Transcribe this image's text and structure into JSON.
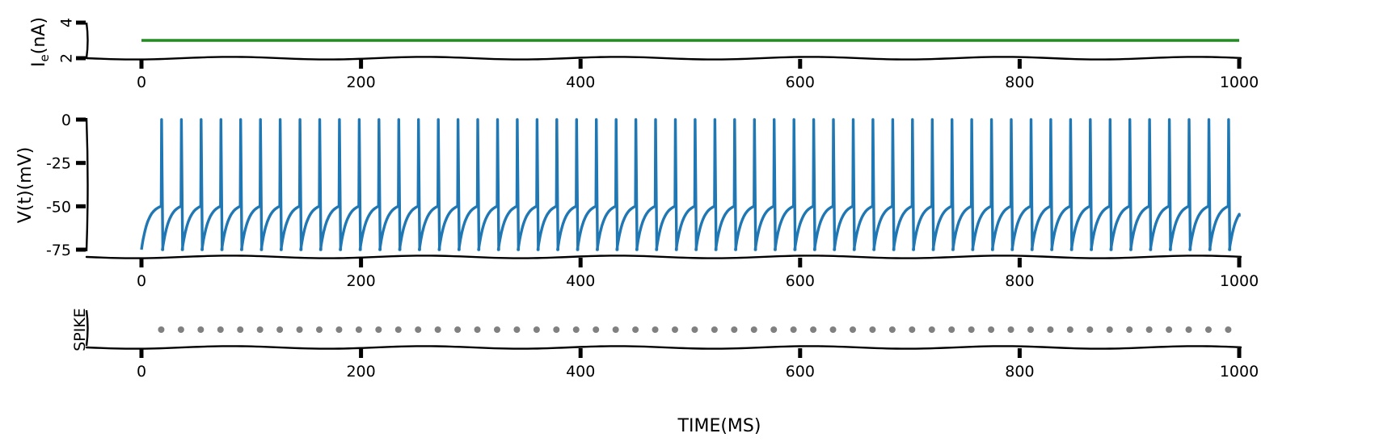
{
  "chart_data": [
    {
      "type": "line",
      "panel": "current",
      "ylabel": "I_e(nA)",
      "ylabel_main": "I",
      "ylabel_sub": "e",
      "ylabel_tail": "(nA)",
      "xlim": [
        -50,
        1000
      ],
      "ylim": [
        2,
        4
      ],
      "xticks": [
        0,
        200,
        400,
        600,
        800,
        1000
      ],
      "yticks": [
        2,
        4
      ],
      "grid": false,
      "color": "#228b22",
      "series": [
        {
          "x": [
            0,
            1000
          ],
          "y": [
            3.0,
            3.0
          ]
        }
      ]
    },
    {
      "type": "line",
      "panel": "voltage",
      "ylabel": "V(t)(mV)",
      "xlim": [
        -50,
        1000
      ],
      "ylim": [
        -75,
        0
      ],
      "xticks": [
        0,
        200,
        400,
        600,
        800,
        1000
      ],
      "yticks": [
        0,
        -25,
        -50,
        -75
      ],
      "grid": false,
      "color": "#1f77b4",
      "v_reset": -75,
      "v_threshold": -50,
      "v_spike": 0,
      "spike_times": [
        18,
        36,
        54,
        72,
        90,
        108,
        126,
        144,
        162,
        180,
        198,
        216,
        234,
        252,
        270,
        288,
        306,
        324,
        342,
        360,
        378,
        396,
        414,
        432,
        450,
        468,
        486,
        504,
        522,
        540,
        558,
        576,
        594,
        612,
        630,
        648,
        666,
        684,
        702,
        720,
        738,
        756,
        774,
        792,
        810,
        828,
        846,
        864,
        882,
        900,
        918,
        936,
        954,
        972,
        990
      ],
      "end": {
        "x": 1000,
        "y": -56
      }
    },
    {
      "type": "scatter",
      "panel": "spikes",
      "ylabel": "SPIKE",
      "xlabel": "TIME(MS)",
      "xlim": [
        -50,
        1000
      ],
      "xticks": [
        0,
        200,
        400,
        600,
        800,
        1000
      ],
      "grid": false,
      "color": "#808080",
      "x": [
        18,
        36,
        54,
        72,
        90,
        108,
        126,
        144,
        162,
        180,
        198,
        216,
        234,
        252,
        270,
        288,
        306,
        324,
        342,
        360,
        378,
        396,
        414,
        432,
        450,
        468,
        486,
        504,
        522,
        540,
        558,
        576,
        594,
        612,
        630,
        648,
        666,
        684,
        702,
        720,
        738,
        756,
        774,
        792,
        810,
        828,
        846,
        864,
        882,
        900,
        918,
        936,
        954,
        972,
        990
      ]
    }
  ]
}
